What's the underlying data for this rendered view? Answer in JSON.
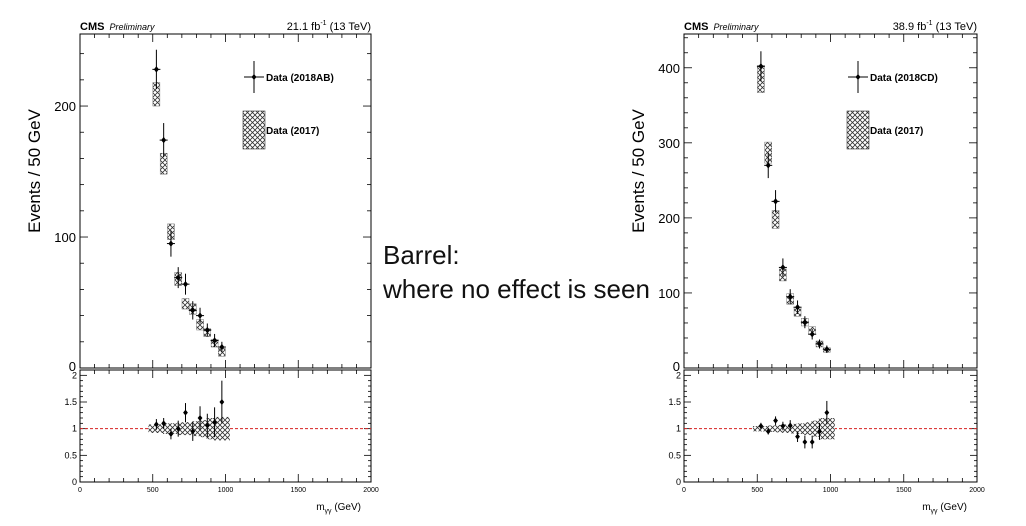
{
  "overlay": {
    "line1": "Barrel:",
    "line2": "where no effect is seen"
  },
  "chart_data": [
    {
      "type": "scatter",
      "experiment": "CMS",
      "label_style": "Preliminary",
      "lumi_value": "21.1 fb",
      "lumi_exp": "-1",
      "lumi_energy": " (13 TeV)",
      "ylabel": "Events / 50 GeV",
      "xlabel_main": "m",
      "xlabel_sub": "γγ",
      "xlabel_unit": " (GeV)",
      "xlim": [
        0,
        2000
      ],
      "ylim": [
        0,
        255
      ],
      "y_ticks": [
        0,
        100,
        200
      ],
      "ratio_ylim": [
        0,
        2.1
      ],
      "ratio_ticks": [
        0,
        0.5,
        1,
        1.5,
        2
      ],
      "x_ticks": [
        0,
        500,
        1000,
        1500,
        2000
      ],
      "legend": {
        "data_label": "Data (2018AB)",
        "ref_label": "Data (2017)"
      },
      "series": [
        {
          "name": "Data (2018AB)",
          "x": [
            525,
            575,
            625,
            675,
            725,
            775,
            825,
            875,
            925,
            975
          ],
          "y": [
            228,
            174,
            95,
            69,
            64,
            44,
            40,
            29,
            21,
            16
          ],
          "yerr": [
            15,
            13,
            10,
            8,
            8,
            7,
            6,
            5,
            5,
            4
          ]
        },
        {
          "name": "Data (2017)",
          "x": [
            525,
            575,
            625,
            675,
            725,
            775,
            825,
            875,
            925,
            975
          ],
          "y": [
            209,
            156,
            104,
            68,
            49,
            45,
            33,
            27,
            19,
            12
          ],
          "yerr": [
            9,
            8,
            6,
            5,
            4,
            4,
            4,
            3,
            3,
            3
          ]
        }
      ],
      "ratio": {
        "x": [
          525,
          575,
          625,
          675,
          725,
          775,
          825,
          875,
          925,
          975
        ],
        "y": [
          1.08,
          1.1,
          0.9,
          1.0,
          1.3,
          0.95,
          1.2,
          1.06,
          1.12,
          1.5
        ],
        "yerr": [
          0.1,
          0.1,
          0.1,
          0.15,
          0.18,
          0.18,
          0.22,
          0.22,
          0.28,
          0.4
        ],
        "band": [
          0.08,
          0.08,
          0.1,
          0.1,
          0.12,
          0.12,
          0.14,
          0.16,
          0.2,
          0.22
        ]
      }
    },
    {
      "type": "scatter",
      "experiment": "CMS",
      "label_style": "Preliminary",
      "lumi_value": "38.9 fb",
      "lumi_exp": "-1",
      "lumi_energy": " (13 TeV)",
      "ylabel": "Events / 50 GeV",
      "xlabel_main": "m",
      "xlabel_sub": "γγ",
      "xlabel_unit": " (GeV)",
      "xlim": [
        0,
        2000
      ],
      "ylim": [
        0,
        445
      ],
      "y_ticks": [
        0,
        100,
        200,
        300,
        400
      ],
      "ratio_ylim": [
        0,
        2.1
      ],
      "ratio_ticks": [
        0,
        0.5,
        1,
        1.5,
        2
      ],
      "x_ticks": [
        0,
        500,
        1000,
        1500,
        2000
      ],
      "legend": {
        "data_label": "Data (2018CD)",
        "ref_label": "Data (2017)"
      },
      "series": [
        {
          "name": "Data (2018CD)",
          "x": [
            525,
            575,
            625,
            675,
            725,
            775,
            825,
            875,
            925,
            975
          ],
          "y": [
            402,
            270,
            222,
            134,
            95,
            81,
            61,
            45,
            32,
            25
          ],
          "yerr": [
            20,
            17,
            15,
            12,
            10,
            9,
            8,
            7,
            6,
            5
          ]
        },
        {
          "name": "Data (2017)",
          "x": [
            525,
            575,
            625,
            675,
            725,
            775,
            825,
            875,
            925,
            975
          ],
          "y": [
            385,
            287,
            198,
            124,
            92,
            75,
            61,
            50,
            32,
            24
          ],
          "yerr": [
            18,
            14,
            12,
            8,
            7,
            6,
            5,
            5,
            4,
            3
          ]
        }
      ],
      "ratio": {
        "x": [
          525,
          575,
          625,
          675,
          725,
          775,
          825,
          875,
          925,
          975
        ],
        "y": [
          1.05,
          0.95,
          1.15,
          1.05,
          1.06,
          0.85,
          0.75,
          0.75,
          0.95,
          1.3
        ],
        "yerr": [
          0.06,
          0.06,
          0.08,
          0.08,
          0.1,
          0.1,
          0.12,
          0.12,
          0.16,
          0.22
        ],
        "band": [
          0.05,
          0.05,
          0.06,
          0.07,
          0.08,
          0.09,
          0.1,
          0.12,
          0.15,
          0.2
        ]
      }
    }
  ]
}
